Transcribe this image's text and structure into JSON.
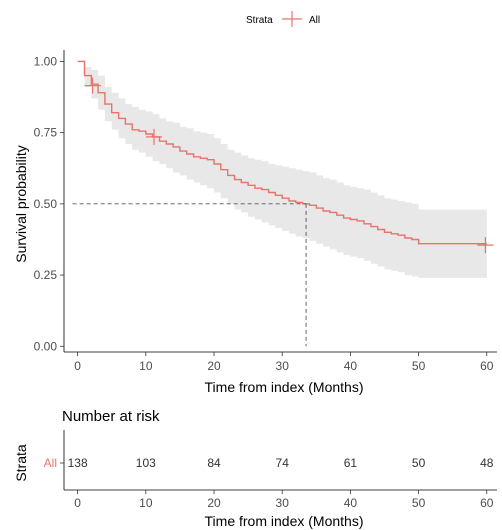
{
  "chart_data": [
    {
      "type": "line",
      "subtype": "kaplan-meier",
      "title": "",
      "xlabel": "Time from index (Months)",
      "ylabel": "Survival probability",
      "xlim": [
        -2,
        61.5
      ],
      "ylim": [
        -0.02,
        1.04
      ],
      "x_ticks": [
        "0",
        "10",
        "20",
        "30",
        "40",
        "50",
        "60"
      ],
      "x_tick_values": [
        0,
        10,
        20,
        30,
        40,
        50,
        60
      ],
      "y_ticks": [
        "0.00",
        "0.25",
        "0.50",
        "0.75",
        "1.00"
      ],
      "y_tick_values": [
        0,
        0.25,
        0.5,
        0.75,
        1.0
      ],
      "grid": false,
      "legend": {
        "position": "top",
        "title": "Strata",
        "entries": [
          "All"
        ]
      },
      "series": [
        {
          "name": "All",
          "color": "#e8736b",
          "x": [
            0,
            1,
            2,
            3,
            4,
            5,
            6,
            7,
            8,
            9,
            10,
            11,
            12,
            13,
            14,
            15,
            16,
            17,
            18,
            19,
            20,
            21,
            22,
            23,
            24,
            25,
            26,
            27,
            28,
            29,
            30,
            31,
            32,
            33,
            34,
            35,
            36,
            37,
            38,
            39,
            40,
            41,
            42,
            43,
            44,
            45,
            46,
            47,
            48,
            49,
            50,
            60
          ],
          "y": [
            1.0,
            0.95,
            0.92,
            0.89,
            0.85,
            0.82,
            0.8,
            0.78,
            0.76,
            0.755,
            0.745,
            0.735,
            0.72,
            0.71,
            0.7,
            0.685,
            0.675,
            0.665,
            0.66,
            0.655,
            0.64,
            0.62,
            0.6,
            0.585,
            0.575,
            0.565,
            0.555,
            0.55,
            0.54,
            0.53,
            0.52,
            0.51,
            0.505,
            0.5,
            0.495,
            0.485,
            0.475,
            0.47,
            0.46,
            0.45,
            0.445,
            0.44,
            0.43,
            0.42,
            0.41,
            0.4,
            0.395,
            0.39,
            0.38,
            0.375,
            0.36,
            0.36
          ],
          "ci_lower": [
            1.0,
            0.91,
            0.87,
            0.83,
            0.79,
            0.76,
            0.73,
            0.71,
            0.69,
            0.68,
            0.665,
            0.65,
            0.64,
            0.625,
            0.61,
            0.6,
            0.585,
            0.575,
            0.565,
            0.555,
            0.54,
            0.52,
            0.5,
            0.48,
            0.47,
            0.455,
            0.445,
            0.435,
            0.425,
            0.415,
            0.405,
            0.395,
            0.385,
            0.38,
            0.37,
            0.36,
            0.35,
            0.34,
            0.33,
            0.32,
            0.315,
            0.31,
            0.3,
            0.29,
            0.28,
            0.27,
            0.265,
            0.26,
            0.25,
            0.245,
            0.24,
            0.24
          ],
          "ci_upper": [
            1.0,
            0.98,
            0.97,
            0.95,
            0.91,
            0.89,
            0.87,
            0.85,
            0.84,
            0.83,
            0.825,
            0.815,
            0.8,
            0.79,
            0.785,
            0.77,
            0.765,
            0.755,
            0.75,
            0.745,
            0.73,
            0.71,
            0.69,
            0.68,
            0.67,
            0.66,
            0.655,
            0.65,
            0.64,
            0.635,
            0.63,
            0.625,
            0.62,
            0.615,
            0.61,
            0.6,
            0.59,
            0.585,
            0.575,
            0.565,
            0.56,
            0.555,
            0.55,
            0.54,
            0.53,
            0.52,
            0.515,
            0.51,
            0.505,
            0.5,
            0.48,
            0.48
          ],
          "censored": [
            {
              "x": 2.2,
              "y": 0.915
            },
            {
              "x": 11.2,
              "y": 0.735
            },
            {
              "x": 59.8,
              "y": 0.355
            }
          ]
        }
      ],
      "annotations": [
        {
          "type": "median-line",
          "x": 33.5,
          "y": 0.5,
          "style": "dashed"
        }
      ]
    },
    {
      "type": "table",
      "title": "Number at risk",
      "ylabel": "Strata",
      "xlabel": "Time from index (Months)",
      "x_ticks": [
        "0",
        "10",
        "20",
        "30",
        "40",
        "50",
        "60"
      ],
      "x_tick_values": [
        0,
        10,
        20,
        30,
        40,
        50,
        60
      ],
      "rows": [
        {
          "label": "All",
          "color": "#e8736b",
          "counts": [
            "138",
            "103",
            "84",
            "74",
            "61",
            "50",
            "48"
          ]
        }
      ]
    }
  ]
}
